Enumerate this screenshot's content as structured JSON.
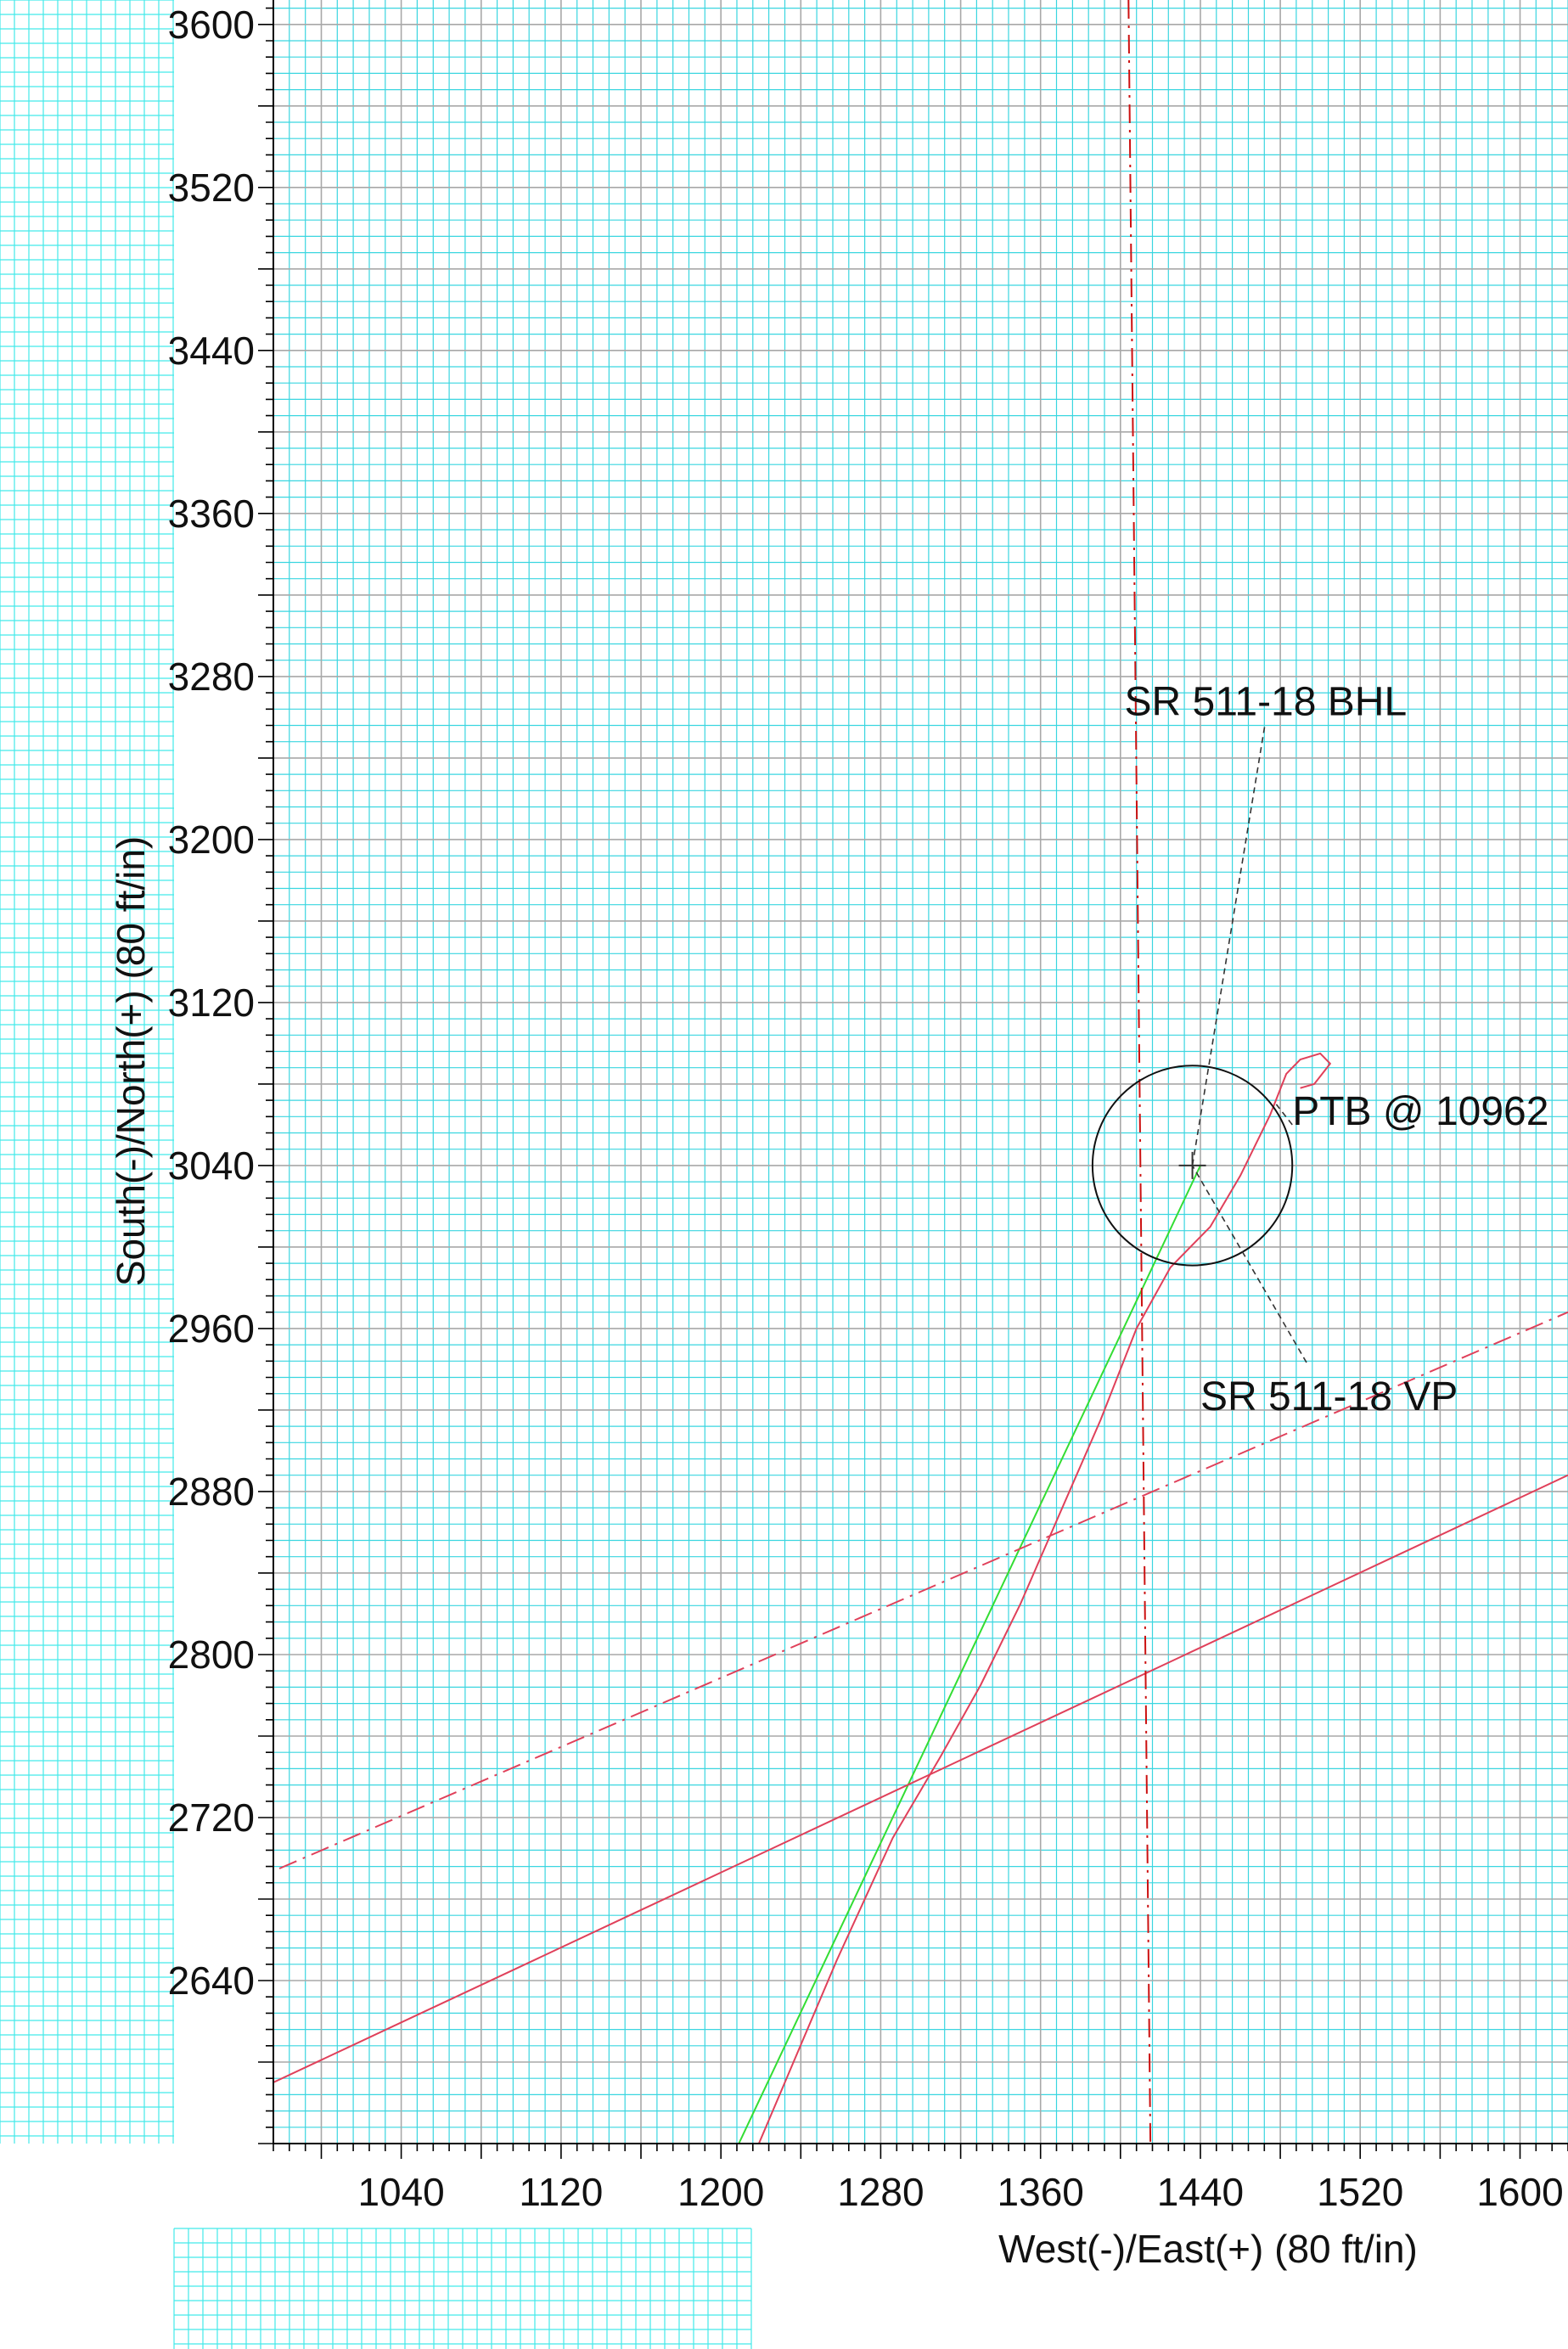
{
  "chart_data": {
    "type": "line",
    "xlabel": "West(-)/East(+) (80 ft/in)",
    "ylabel": "South(-)/North(+) (80 ft/in)",
    "xlim": [
      976,
      1624
    ],
    "ylim": [
      2560,
      3612
    ],
    "xticks": [
      1040,
      1120,
      1200,
      1280,
      1360,
      1440,
      1520,
      1600
    ],
    "yticks": [
      2640,
      2720,
      2800,
      2880,
      2960,
      3040,
      3120,
      3200,
      3280,
      3360,
      3440,
      3520,
      3600
    ],
    "xtick_labels": [
      "1040",
      "1120",
      "1200",
      "1280",
      "1360",
      "1440",
      "1520",
      "1600"
    ],
    "ytick_labels": [
      "2640",
      "2720",
      "2800",
      "2880",
      "2960",
      "3040",
      "3120",
      "3200",
      "3280",
      "3360",
      "3440",
      "3520",
      "3600"
    ],
    "grid": true,
    "series": [
      {
        "color": "#e0405a",
        "style": "solid",
        "points": [
          [
            1219,
            2560
          ],
          [
            1232,
            2590
          ],
          [
            1258,
            2650
          ],
          [
            1286,
            2710
          ],
          [
            1310,
            2750
          ],
          [
            1330,
            2785
          ],
          [
            1350,
            2825
          ],
          [
            1370,
            2870
          ],
          [
            1390,
            2915
          ],
          [
            1408,
            2960
          ],
          [
            1425,
            2990
          ],
          [
            1445,
            3010
          ],
          [
            1460,
            3035
          ],
          [
            1475,
            3065
          ],
          [
            1483,
            3085
          ],
          [
            1490,
            3092
          ],
          [
            1500,
            3095
          ],
          [
            1505,
            3090
          ],
          [
            1497,
            3080
          ],
          [
            1490,
            3078
          ]
        ]
      },
      {
        "color": "#33dd33",
        "style": "solid",
        "points": [
          [
            1209,
            2560
          ],
          [
            1440,
            3040
          ]
        ]
      },
      {
        "color": "#e0405a",
        "style": "solid",
        "points": [
          [
            976,
            2590
          ],
          [
            1624,
            2888
          ]
        ]
      },
      {
        "color": "#e0405a",
        "style": "dash-dot",
        "points": [
          [
            979,
            2695
          ],
          [
            1624,
            2968
          ]
        ]
      },
      {
        "color": "#cc1111",
        "style": "dash-dot",
        "points": [
          [
            1404,
            3612
          ],
          [
            1415,
            2560
          ]
        ]
      }
    ],
    "target_circle": {
      "center": [
        1436,
        3040
      ],
      "radius": 50,
      "color": "#111111"
    },
    "target_marker": {
      "point": [
        1436,
        3040
      ]
    },
    "annotations": [
      {
        "text": "SR 511-18 BHL",
        "anchor": [
          1402,
          3261
        ],
        "leader_to": [
          1436,
          3040
        ]
      },
      {
        "text": "PTB @ 10962",
        "anchor": [
          1486,
          3060
        ],
        "leader_to": [
          1478,
          3070
        ]
      },
      {
        "text": "SR 511-18 VP",
        "anchor": [
          1440,
          2920
        ],
        "leader_to": [
          1436,
          3040
        ]
      }
    ]
  }
}
